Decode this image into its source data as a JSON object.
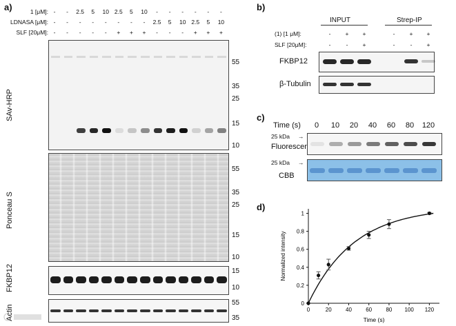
{
  "panels": {
    "a": "a)",
    "b": "b)",
    "c": "c)",
    "d": "d)"
  },
  "panel_a": {
    "row_labels": [
      "1 [μM]:",
      "LDNASA [μM]:",
      "SLF [20μM]:"
    ],
    "rows": [
      [
        "-",
        "-",
        "2.5",
        "5",
        "10",
        "2.5",
        "5",
        "10",
        "-",
        "-",
        "-",
        "-",
        "-",
        "-"
      ],
      [
        "-",
        "-",
        "-",
        "-",
        "-",
        "-",
        "-",
        "-",
        "2.5",
        "5",
        "10",
        "2.5",
        "5",
        "10"
      ],
      [
        "-",
        "-",
        "-",
        "-",
        "-",
        "+",
        "+",
        "+",
        "-",
        "-",
        "-",
        "+",
        "+",
        "+"
      ]
    ],
    "blots": {
      "savhrp": {
        "label": "SAv-HRP",
        "markers": [
          "55",
          "35",
          "25",
          "15",
          "10"
        ]
      },
      "ponceau": {
        "label": "Ponceau S",
        "markers": [
          "55",
          "35",
          "25",
          "15",
          "10"
        ]
      },
      "fkbp": {
        "label": "FKBP12",
        "markers": [
          "15",
          "10"
        ]
      },
      "actin": {
        "label": "Actin",
        "markers": [
          "55",
          "35"
        ]
      }
    },
    "savhrp_band_intensity": [
      0,
      0,
      0.8,
      0.9,
      1.0,
      0.1,
      0.2,
      0.45,
      0.85,
      0.95,
      1.0,
      0.15,
      0.35,
      0.5
    ]
  },
  "panel_b": {
    "groups": [
      "INPUT",
      "Strep-IP"
    ],
    "row_labels": [
      "(1) [1 μM]:",
      "SLF [20μM]:"
    ],
    "rows": [
      [
        "-",
        "+",
        "+",
        "-",
        "+",
        "+"
      ],
      [
        "-",
        "-",
        "+",
        "-",
        "-",
        "+"
      ]
    ],
    "blot_labels": [
      "FKBP12",
      "β-Tubulin"
    ]
  },
  "panel_c": {
    "time_label": "Time (s)",
    "times": [
      "0",
      "10",
      "20",
      "40",
      "60",
      "80",
      "120"
    ],
    "kda": "25 kDa",
    "fluorescence": "Fluorescence",
    "cbb": "CBB"
  },
  "colors": {
    "cbb_blue": "#8cc0e8",
    "cbb_band": "#4f88c8",
    "blot_bg": "#f4f4f4"
  },
  "chart_data": {
    "type": "scatter",
    "xlabel": "Time (s)",
    "ylabel": "Normalized intensity",
    "xlim": [
      0,
      130
    ],
    "ylim": [
      0,
      1.05
    ],
    "xticks": [
      "0",
      "20",
      "40",
      "60",
      "80",
      "100",
      "120"
    ],
    "yticks": [
      "0",
      "0.2",
      "0.4",
      "0.6",
      "0.8",
      "1"
    ],
    "x": [
      0,
      10,
      20,
      40,
      60,
      80,
      120
    ],
    "y": [
      0,
      0.31,
      0.43,
      0.61,
      0.76,
      0.88,
      1.0
    ],
    "err": [
      0,
      0.04,
      0.06,
      0.02,
      0.04,
      0.05,
      0.01
    ],
    "fit": {
      "model": "exponential",
      "k": 0.022
    }
  },
  "watermark": "WeChat watermark"
}
